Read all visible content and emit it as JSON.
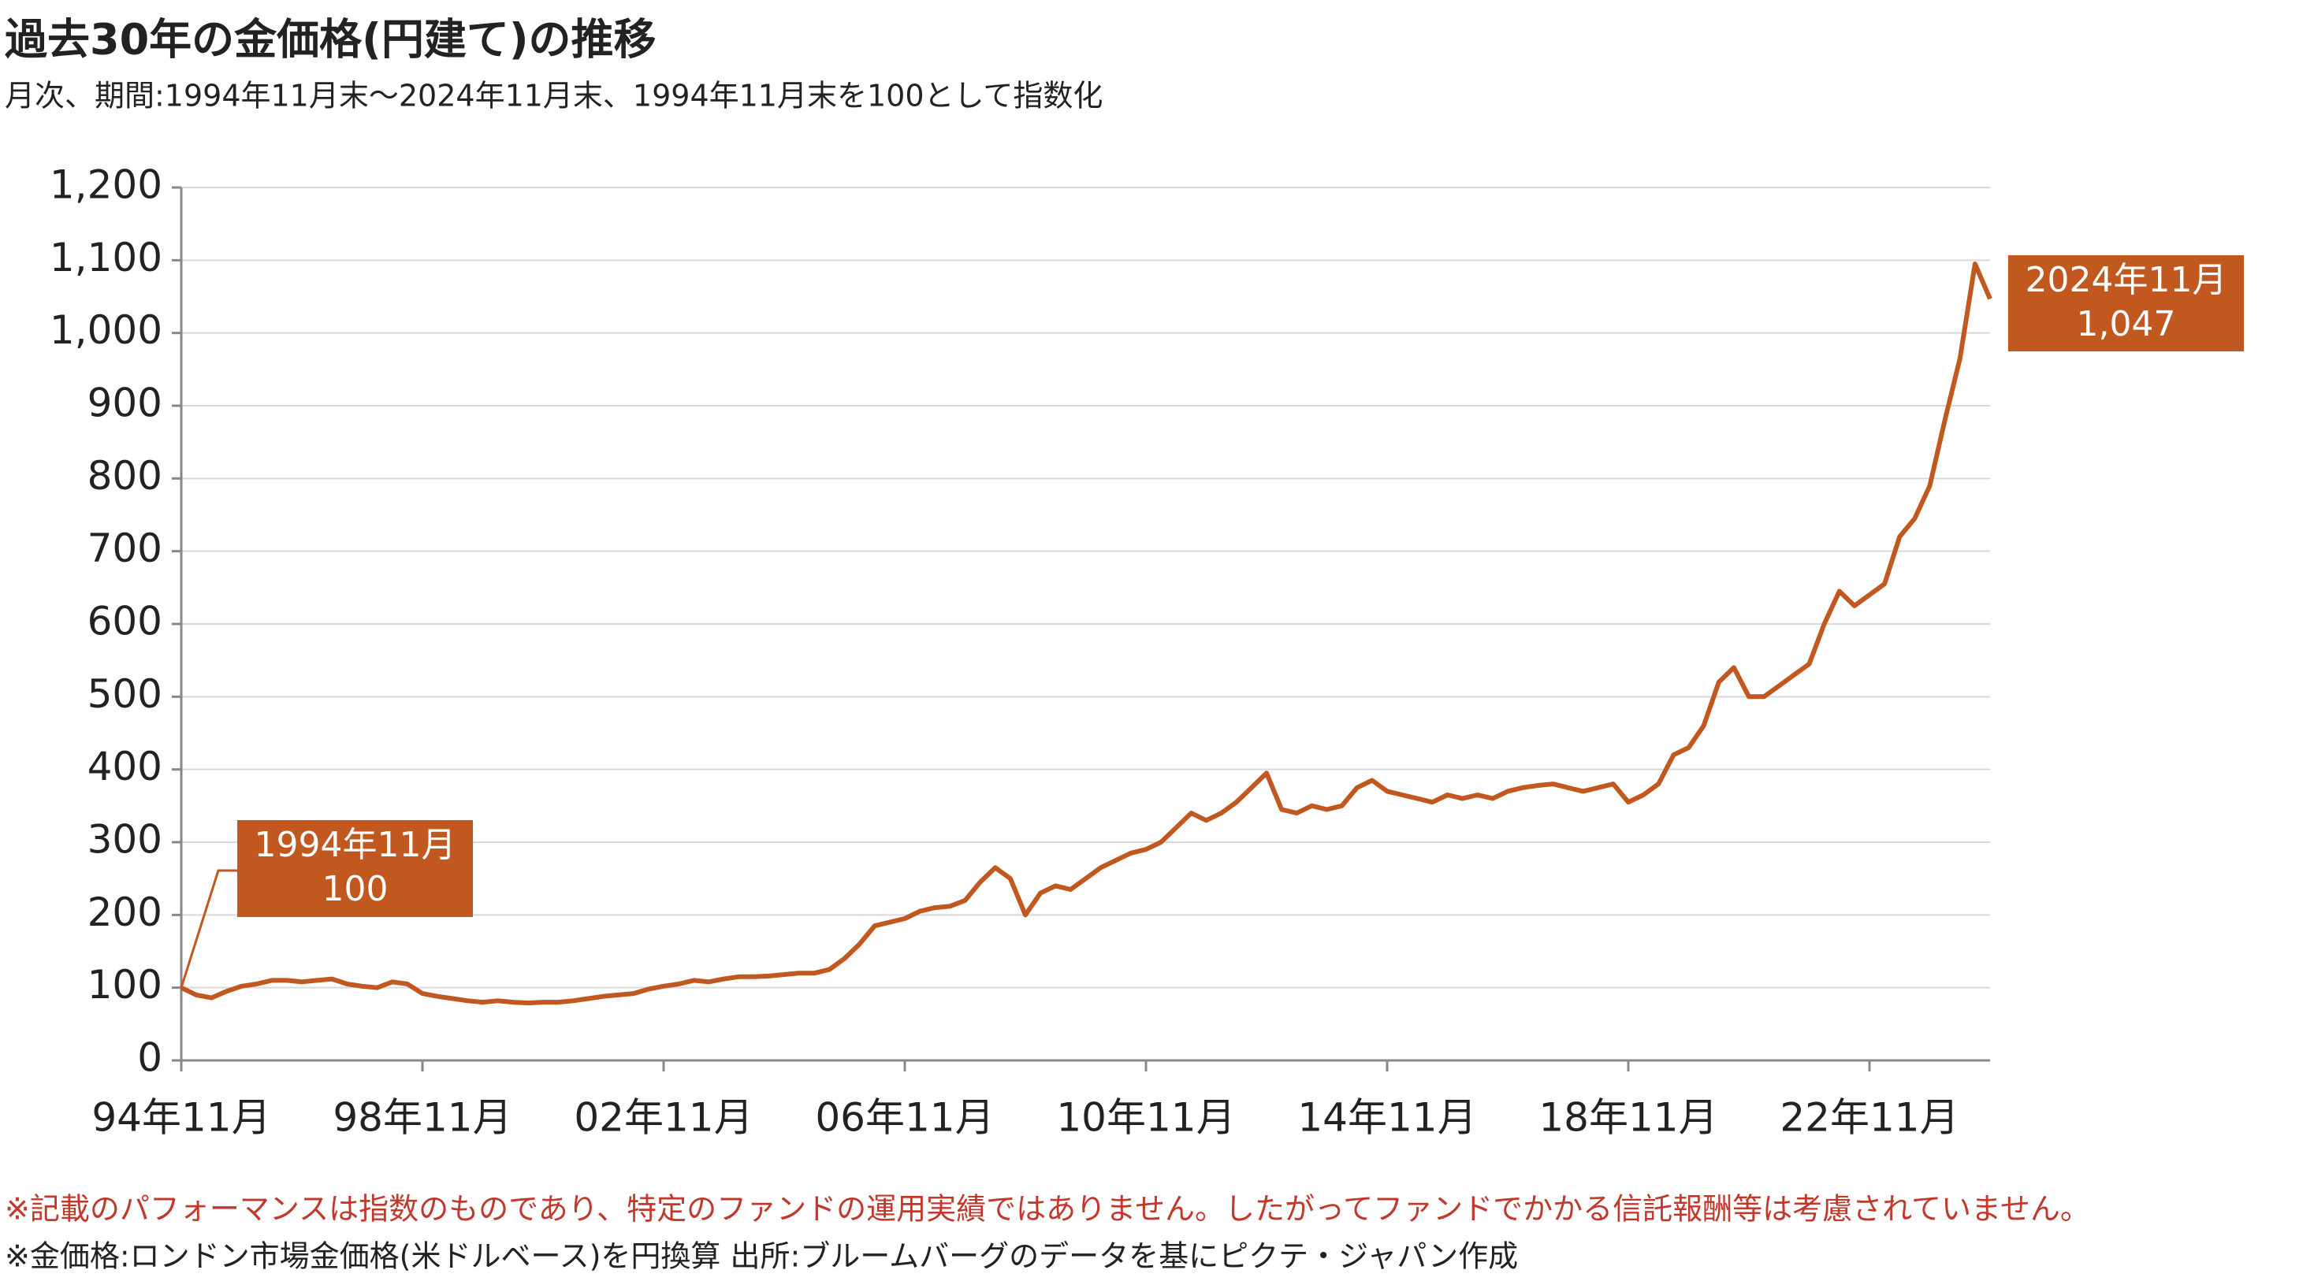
{
  "chart_data": {
    "type": "line",
    "title": "過去30年の金価格(円建て)の推移",
    "subtitle": "月次、期間:1994年11月末～2024年11月末、1994年11月末を100として指数化",
    "categories": [
      "94年11月",
      null,
      null,
      null,
      null,
      null,
      null,
      null,
      null,
      null,
      null,
      null,
      null,
      null,
      null,
      null,
      "98年11月",
      null,
      null,
      null,
      null,
      null,
      null,
      null,
      null,
      null,
      null,
      null,
      null,
      null,
      null,
      null,
      "02年11月",
      null,
      null,
      null,
      null,
      null,
      null,
      null,
      null,
      null,
      null,
      null,
      null,
      null,
      null,
      null,
      "06年11月",
      null,
      null,
      null,
      null,
      null,
      null,
      null,
      null,
      null,
      null,
      null,
      null,
      null,
      null,
      null,
      "10年11月",
      null,
      null,
      null,
      null,
      null,
      null,
      null,
      null,
      null,
      null,
      null,
      null,
      null,
      null,
      null,
      "14年11月",
      null,
      null,
      null,
      null,
      null,
      null,
      null,
      null,
      null,
      null,
      null,
      null,
      null,
      null,
      null,
      "18年11月",
      null,
      null,
      null,
      null,
      null,
      null,
      null,
      null,
      null,
      null,
      null,
      null,
      null,
      null,
      null,
      "22年11月",
      null,
      null,
      null,
      null,
      null,
      null,
      null,
      null
    ],
    "series": [
      {
        "name": "金価格(円建て)",
        "color": "#c0581f",
        "values": [
          100,
          90,
          86,
          95,
          102,
          105,
          110,
          110,
          108,
          110,
          112,
          105,
          102,
          100,
          108,
          105,
          92,
          88,
          85,
          82,
          80,
          82,
          80,
          79,
          80,
          80,
          82,
          85,
          88,
          90,
          92,
          98,
          102,
          105,
          110,
          108,
          112,
          115,
          115,
          116,
          118,
          120,
          120,
          125,
          140,
          160,
          185,
          190,
          195,
          205,
          210,
          212,
          220,
          245,
          265,
          250,
          200,
          230,
          240,
          235,
          250,
          265,
          275,
          285,
          290,
          300,
          320,
          340,
          330,
          340,
          355,
          375,
          395,
          345,
          340,
          350,
          345,
          350,
          375,
          385,
          370,
          365,
          360,
          355,
          365,
          360,
          365,
          360,
          370,
          375,
          378,
          380,
          375,
          370,
          375,
          380,
          355,
          365,
          380,
          420,
          430,
          460,
          520,
          540,
          500,
          500,
          515,
          530,
          545,
          600,
          645,
          625,
          640,
          655,
          720,
          745,
          790,
          880,
          965,
          1095,
          1047
        ]
      }
    ],
    "ylim": [
      0,
      1200
    ],
    "yticks": [
      0,
      100,
      200,
      300,
      400,
      500,
      600,
      700,
      800,
      900,
      {
        "value": 1000,
        "label": "1,000"
      },
      {
        "value": 1100,
        "label": "1,100"
      },
      {
        "value": 1200,
        "label": "1,200"
      }
    ],
    "grid": true,
    "annotations": [
      {
        "x": "1994年11月",
        "label": "100"
      },
      {
        "x": "2024年11月",
        "label": "1,047"
      }
    ],
    "notes": [
      "※記載のパフォーマンスは指数のものであり、特定のファンドの運用実績ではありません。したがってファンドでかかる信託報酬等は考慮されていません。",
      "※金価格:ロンドン市場金価格(米ドルベース)を円換算 出所:ブルームバーグのデータを基にピクテ・ジャパン作成"
    ]
  }
}
